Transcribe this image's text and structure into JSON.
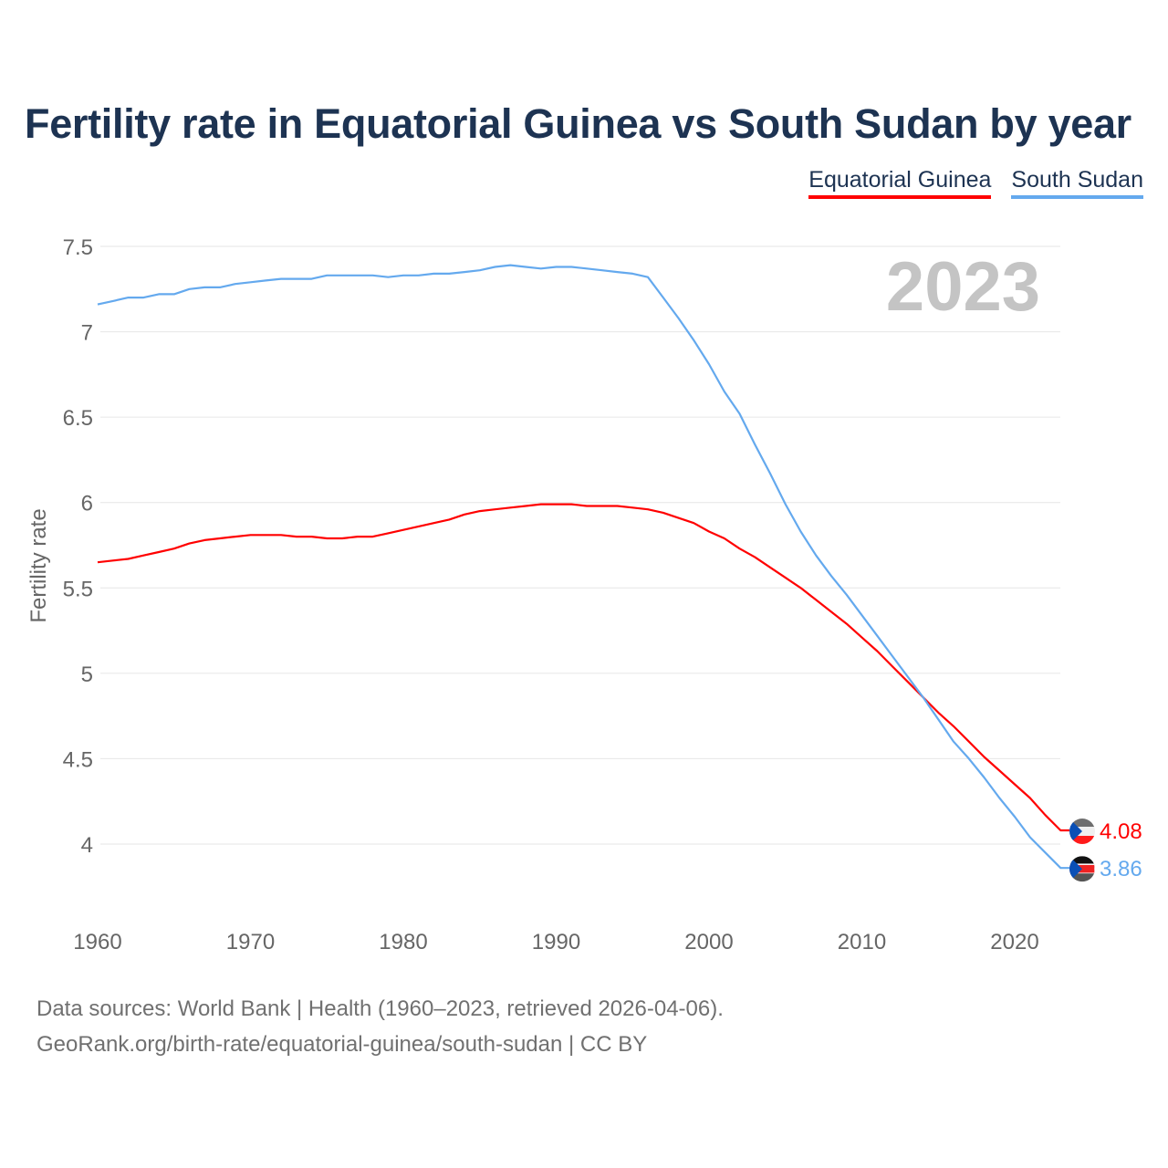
{
  "chart_data": {
    "type": "line",
    "title": "Fertility rate in Equatorial Guinea vs South Sudan by year",
    "xlabel": "",
    "ylabel": "Fertility rate",
    "xlim": [
      1960,
      2023
    ],
    "ylim": [
      3.75,
      7.6
    ],
    "x_ticks": [
      "1960",
      "1970",
      "1980",
      "1990",
      "2000",
      "2010",
      "2020"
    ],
    "y_ticks": [
      "4",
      "4.5",
      "5",
      "5.5",
      "6",
      "6.5",
      "7",
      "7.5"
    ],
    "grid": true,
    "legend_position": "top-right",
    "year_label": "2023",
    "x": [
      1960,
      1961,
      1962,
      1963,
      1964,
      1965,
      1966,
      1967,
      1968,
      1969,
      1970,
      1971,
      1972,
      1973,
      1974,
      1975,
      1976,
      1977,
      1978,
      1979,
      1980,
      1981,
      1982,
      1983,
      1984,
      1985,
      1986,
      1987,
      1988,
      1989,
      1990,
      1991,
      1992,
      1993,
      1994,
      1995,
      1996,
      1997,
      1998,
      1999,
      2000,
      2001,
      2002,
      2003,
      2004,
      2005,
      2006,
      2007,
      2008,
      2009,
      2010,
      2011,
      2012,
      2013,
      2014,
      2015,
      2016,
      2017,
      2018,
      2019,
      2020,
      2021,
      2022,
      2023
    ],
    "series": [
      {
        "name": "Equatorial Guinea",
        "color": "#ff0000",
        "end_label": "4.08",
        "values": [
          5.65,
          5.66,
          5.67,
          5.69,
          5.71,
          5.73,
          5.76,
          5.78,
          5.79,
          5.8,
          5.81,
          5.81,
          5.81,
          5.8,
          5.8,
          5.79,
          5.79,
          5.8,
          5.8,
          5.82,
          5.84,
          5.86,
          5.88,
          5.9,
          5.93,
          5.95,
          5.96,
          5.97,
          5.98,
          5.99,
          5.99,
          5.99,
          5.98,
          5.98,
          5.98,
          5.97,
          5.96,
          5.94,
          5.91,
          5.88,
          5.83,
          5.79,
          5.73,
          5.68,
          5.62,
          5.56,
          5.5,
          5.43,
          5.36,
          5.29,
          5.21,
          5.13,
          5.04,
          4.95,
          4.86,
          4.77,
          4.69,
          4.6,
          4.51,
          4.43,
          4.35,
          4.27,
          4.17,
          4.08
        ]
      },
      {
        "name": "South Sudan",
        "color": "#64a9ee",
        "end_label": "3.86",
        "values": [
          7.16,
          7.18,
          7.2,
          7.2,
          7.22,
          7.22,
          7.25,
          7.26,
          7.26,
          7.28,
          7.29,
          7.3,
          7.31,
          7.31,
          7.31,
          7.33,
          7.33,
          7.33,
          7.33,
          7.32,
          7.33,
          7.33,
          7.34,
          7.34,
          7.35,
          7.36,
          7.38,
          7.39,
          7.38,
          7.37,
          7.38,
          7.38,
          7.37,
          7.36,
          7.35,
          7.34,
          7.32,
          7.2,
          7.08,
          6.95,
          6.81,
          6.65,
          6.52,
          6.34,
          6.17,
          5.99,
          5.83,
          5.69,
          5.57,
          5.46,
          5.34,
          5.22,
          5.1,
          4.98,
          4.86,
          4.73,
          4.6,
          4.5,
          4.39,
          4.27,
          4.16,
          4.04,
          3.95,
          3.86
        ]
      }
    ]
  },
  "footer": {
    "line1": "Data sources: World Bank | Health (1960–2023, retrieved 2026-04-06).",
    "line2": "GeoRank.org/birth-rate/equatorial-guinea/south-sudan | CC BY"
  }
}
